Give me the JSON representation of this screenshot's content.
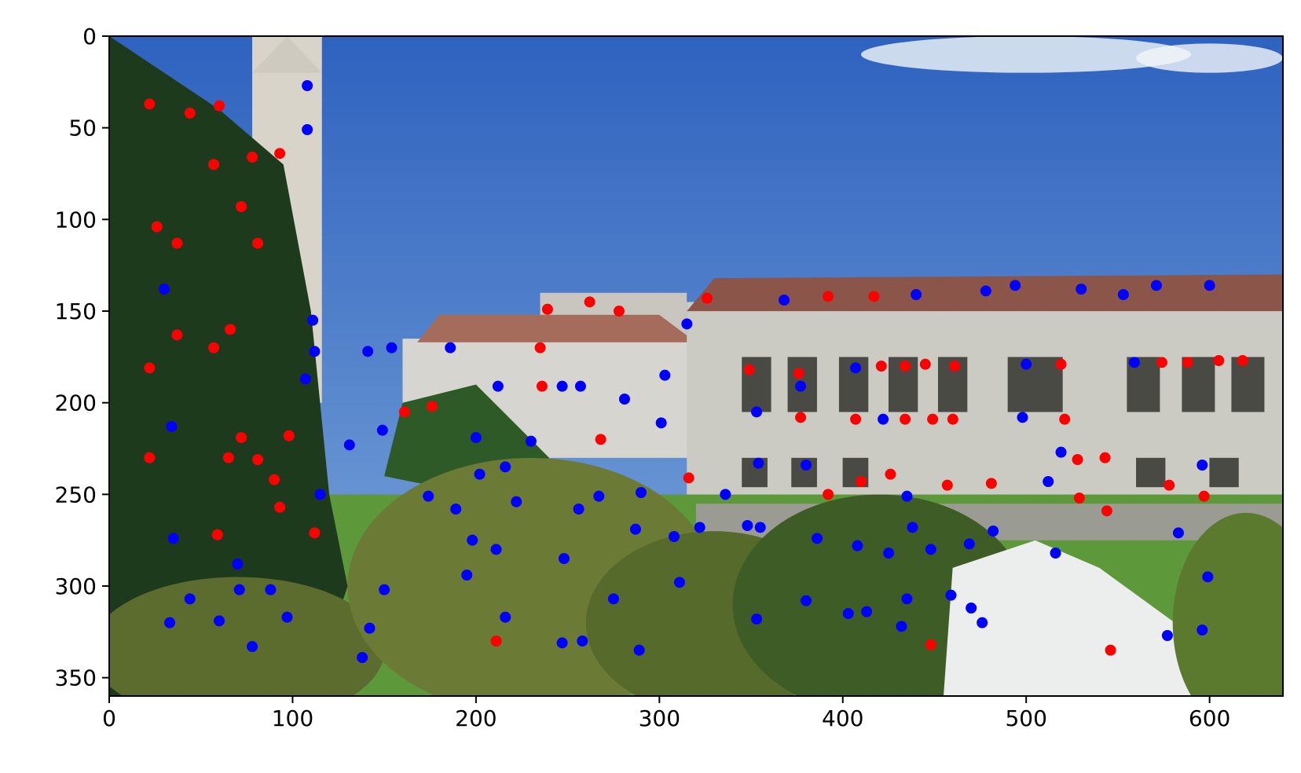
{
  "chart_data": {
    "type": "scatter",
    "xlim": [
      0,
      640
    ],
    "ylim": [
      360,
      0
    ],
    "xticks": [
      0,
      100,
      200,
      300,
      400,
      500,
      600
    ],
    "yticks": [
      0,
      50,
      100,
      150,
      200,
      250,
      300,
      350
    ],
    "series": [
      {
        "color": "#ff0000",
        "x": [
          22,
          44,
          60,
          57,
          78,
          93,
          72,
          26,
          37,
          81,
          37,
          66,
          57,
          22,
          72,
          98,
          22,
          65,
          81,
          90,
          93,
          59,
          112,
          211,
          161,
          176,
          239,
          262,
          278,
          235,
          236,
          268,
          326,
          392,
          417,
          349,
          376,
          377,
          407,
          421,
          434,
          445,
          461,
          434,
          449,
          460,
          519,
          521,
          574,
          588,
          605,
          618,
          316,
          392,
          410,
          426,
          457,
          481,
          528,
          543,
          529,
          544,
          578,
          597,
          448,
          546
        ],
        "y": [
          37,
          42,
          38,
          70,
          66,
          64,
          93,
          104,
          113,
          113,
          163,
          160,
          170,
          181,
          219,
          218,
          230,
          230,
          231,
          242,
          257,
          272,
          271,
          330,
          205,
          202,
          149,
          145,
          150,
          170,
          191,
          220,
          143,
          142,
          142,
          182,
          184,
          208,
          209,
          180,
          180,
          179,
          180,
          209,
          209,
          209,
          179,
          209,
          178,
          178,
          177,
          177,
          241,
          250,
          243,
          239,
          245,
          244,
          231,
          230,
          252,
          259,
          245,
          251,
          332,
          335
        ]
      },
      {
        "color": "#0000ff",
        "x": [
          108,
          108,
          30,
          111,
          112,
          107,
          34,
          115,
          35,
          70,
          71,
          88,
          44,
          33,
          60,
          97,
          78,
          138,
          142,
          150,
          141,
          154,
          131,
          149,
          174,
          189,
          186,
          212,
          200,
          202,
          216,
          222,
          198,
          211,
          195,
          216,
          230,
          247,
          258,
          248,
          247,
          257,
          281,
          256,
          267,
          303,
          315,
          301,
          290,
          287,
          308,
          322,
          311,
          275,
          289,
          336,
          368,
          348,
          355,
          353,
          354,
          353,
          377,
          380,
          380,
          386,
          407,
          422,
          408,
          425,
          435,
          438,
          448,
          435,
          459,
          432,
          413,
          403,
          440,
          478,
          494,
          530,
          553,
          571,
          600,
          500,
          498,
          519,
          512,
          559,
          596,
          583,
          599,
          577,
          596,
          482,
          469,
          470,
          476,
          516
        ],
        "y": [
          27,
          51,
          138,
          155,
          172,
          187,
          213,
          250,
          274,
          288,
          302,
          302,
          307,
          320,
          319,
          317,
          333,
          339,
          323,
          302,
          172,
          170,
          223,
          215,
          251,
          258,
          170,
          191,
          219,
          239,
          235,
          254,
          275,
          280,
          294,
          317,
          221,
          331,
          330,
          285,
          191,
          191,
          198,
          258,
          251,
          185,
          157,
          211,
          249,
          269,
          273,
          268,
          298,
          307,
          335,
          250,
          144,
          267,
          268,
          205,
          233,
          318,
          191,
          234,
          308,
          274,
          181,
          209,
          278,
          282,
          251,
          268,
          280,
          307,
          305,
          322,
          314,
          315,
          141,
          139,
          136,
          138,
          141,
          136,
          136,
          179,
          208,
          227,
          243,
          178,
          234,
          271,
          295,
          327,
          324,
          270,
          277,
          312,
          320,
          282
        ]
      }
    ]
  }
}
